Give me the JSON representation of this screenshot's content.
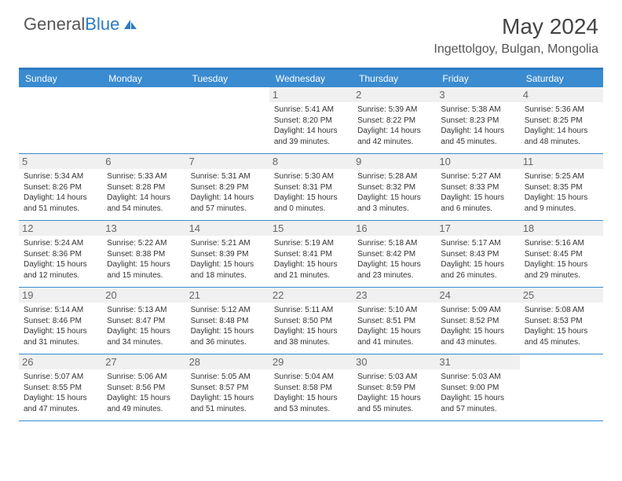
{
  "logo": {
    "text1": "General",
    "text2": "Blue"
  },
  "title": "May 2024",
  "location": "Ingettolgoy, Bulgan, Mongolia",
  "colors": {
    "header_bar": "#3a8bd0",
    "accent": "#2d7bc0",
    "daynum_bg": "#f0f0f0",
    "text": "#333333",
    "background": "#ffffff"
  },
  "weekdays": [
    "Sunday",
    "Monday",
    "Tuesday",
    "Wednesday",
    "Thursday",
    "Friday",
    "Saturday"
  ],
  "weeks": [
    [
      {
        "n": "",
        "sr": "",
        "ss": "",
        "dl": ""
      },
      {
        "n": "",
        "sr": "",
        "ss": "",
        "dl": ""
      },
      {
        "n": "",
        "sr": "",
        "ss": "",
        "dl": ""
      },
      {
        "n": "1",
        "sr": "5:41 AM",
        "ss": "8:20 PM",
        "dl": "14 hours and 39 minutes."
      },
      {
        "n": "2",
        "sr": "5:39 AM",
        "ss": "8:22 PM",
        "dl": "14 hours and 42 minutes."
      },
      {
        "n": "3",
        "sr": "5:38 AM",
        "ss": "8:23 PM",
        "dl": "14 hours and 45 minutes."
      },
      {
        "n": "4",
        "sr": "5:36 AM",
        "ss": "8:25 PM",
        "dl": "14 hours and 48 minutes."
      }
    ],
    [
      {
        "n": "5",
        "sr": "5:34 AM",
        "ss": "8:26 PM",
        "dl": "14 hours and 51 minutes."
      },
      {
        "n": "6",
        "sr": "5:33 AM",
        "ss": "8:28 PM",
        "dl": "14 hours and 54 minutes."
      },
      {
        "n": "7",
        "sr": "5:31 AM",
        "ss": "8:29 PM",
        "dl": "14 hours and 57 minutes."
      },
      {
        "n": "8",
        "sr": "5:30 AM",
        "ss": "8:31 PM",
        "dl": "15 hours and 0 minutes."
      },
      {
        "n": "9",
        "sr": "5:28 AM",
        "ss": "8:32 PM",
        "dl": "15 hours and 3 minutes."
      },
      {
        "n": "10",
        "sr": "5:27 AM",
        "ss": "8:33 PM",
        "dl": "15 hours and 6 minutes."
      },
      {
        "n": "11",
        "sr": "5:25 AM",
        "ss": "8:35 PM",
        "dl": "15 hours and 9 minutes."
      }
    ],
    [
      {
        "n": "12",
        "sr": "5:24 AM",
        "ss": "8:36 PM",
        "dl": "15 hours and 12 minutes."
      },
      {
        "n": "13",
        "sr": "5:22 AM",
        "ss": "8:38 PM",
        "dl": "15 hours and 15 minutes."
      },
      {
        "n": "14",
        "sr": "5:21 AM",
        "ss": "8:39 PM",
        "dl": "15 hours and 18 minutes."
      },
      {
        "n": "15",
        "sr": "5:19 AM",
        "ss": "8:41 PM",
        "dl": "15 hours and 21 minutes."
      },
      {
        "n": "16",
        "sr": "5:18 AM",
        "ss": "8:42 PM",
        "dl": "15 hours and 23 minutes."
      },
      {
        "n": "17",
        "sr": "5:17 AM",
        "ss": "8:43 PM",
        "dl": "15 hours and 26 minutes."
      },
      {
        "n": "18",
        "sr": "5:16 AM",
        "ss": "8:45 PM",
        "dl": "15 hours and 29 minutes."
      }
    ],
    [
      {
        "n": "19",
        "sr": "5:14 AM",
        "ss": "8:46 PM",
        "dl": "15 hours and 31 minutes."
      },
      {
        "n": "20",
        "sr": "5:13 AM",
        "ss": "8:47 PM",
        "dl": "15 hours and 34 minutes."
      },
      {
        "n": "21",
        "sr": "5:12 AM",
        "ss": "8:48 PM",
        "dl": "15 hours and 36 minutes."
      },
      {
        "n": "22",
        "sr": "5:11 AM",
        "ss": "8:50 PM",
        "dl": "15 hours and 38 minutes."
      },
      {
        "n": "23",
        "sr": "5:10 AM",
        "ss": "8:51 PM",
        "dl": "15 hours and 41 minutes."
      },
      {
        "n": "24",
        "sr": "5:09 AM",
        "ss": "8:52 PM",
        "dl": "15 hours and 43 minutes."
      },
      {
        "n": "25",
        "sr": "5:08 AM",
        "ss": "8:53 PM",
        "dl": "15 hours and 45 minutes."
      }
    ],
    [
      {
        "n": "26",
        "sr": "5:07 AM",
        "ss": "8:55 PM",
        "dl": "15 hours and 47 minutes."
      },
      {
        "n": "27",
        "sr": "5:06 AM",
        "ss": "8:56 PM",
        "dl": "15 hours and 49 minutes."
      },
      {
        "n": "28",
        "sr": "5:05 AM",
        "ss": "8:57 PM",
        "dl": "15 hours and 51 minutes."
      },
      {
        "n": "29",
        "sr": "5:04 AM",
        "ss": "8:58 PM",
        "dl": "15 hours and 53 minutes."
      },
      {
        "n": "30",
        "sr": "5:03 AM",
        "ss": "8:59 PM",
        "dl": "15 hours and 55 minutes."
      },
      {
        "n": "31",
        "sr": "5:03 AM",
        "ss": "9:00 PM",
        "dl": "15 hours and 57 minutes."
      },
      {
        "n": "",
        "sr": "",
        "ss": "",
        "dl": ""
      }
    ]
  ],
  "labels": {
    "sunrise": "Sunrise:",
    "sunset": "Sunset:",
    "daylight": "Daylight:"
  }
}
